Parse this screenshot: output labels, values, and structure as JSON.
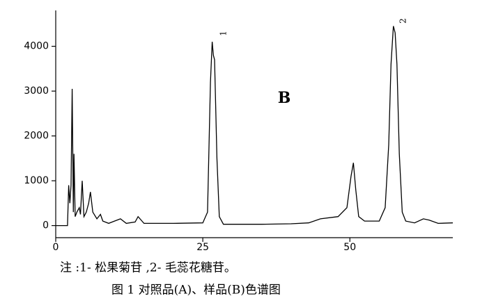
{
  "chart_data": {
    "type": "line",
    "x": [
      0,
      2,
      2.2,
      2.4,
      2.6,
      2.8,
      3.0,
      3.1,
      3.3,
      3.6,
      4.0,
      4.2,
      4.5,
      4.8,
      5.2,
      5.6,
      5.9,
      6.3,
      7.0,
      7.6,
      8.0,
      9.0,
      10.0,
      11.0,
      12.0,
      13.5,
      14.0,
      15.0,
      20.0,
      25.0,
      25.8,
      26.3,
      26.6,
      26.8,
      27.0,
      27.4,
      27.8,
      28.5,
      35.0,
      40.0,
      43.0,
      45.0,
      48.0,
      49.5,
      50.2,
      50.6,
      51.0,
      51.5,
      52.5,
      55.0,
      56.0,
      56.6,
      57.0,
      57.4,
      57.7,
      58.0,
      58.4,
      58.9,
      59.5,
      61.0,
      62.5,
      63.5,
      65.0,
      67.5
    ],
    "series": [
      {
        "name": "B",
        "color": "#000000",
        "values": [
          0,
          0,
          900,
          500,
          900,
          3050,
          300,
          1600,
          200,
          300,
          400,
          250,
          1000,
          200,
          300,
          500,
          750,
          300,
          150,
          250,
          100,
          50,
          100,
          150,
          50,
          80,
          200,
          50,
          50,
          60,
          300,
          3200,
          4100,
          3800,
          3700,
          1500,
          200,
          30,
          30,
          40,
          60,
          150,
          200,
          400,
          1100,
          1400,
          800,
          200,
          100,
          100,
          400,
          1800,
          3600,
          4450,
          4300,
          3600,
          1600,
          300,
          100,
          60,
          150,
          120,
          50,
          60
        ]
      }
    ],
    "xlim": [
      0,
      67.5
    ],
    "ylim": [
      -270,
      4800
    ],
    "xticks": [
      0,
      25,
      50
    ],
    "yticks": [
      0,
      1000,
      2000,
      3000,
      4000
    ],
    "annotations": [
      "1",
      "2",
      "B"
    ],
    "captions": [
      "注 :1- 松果菊苷 ,2- 毛蕊花糖苷。",
      "图 1   对照品(A)、样品(B)色谱图"
    ]
  }
}
